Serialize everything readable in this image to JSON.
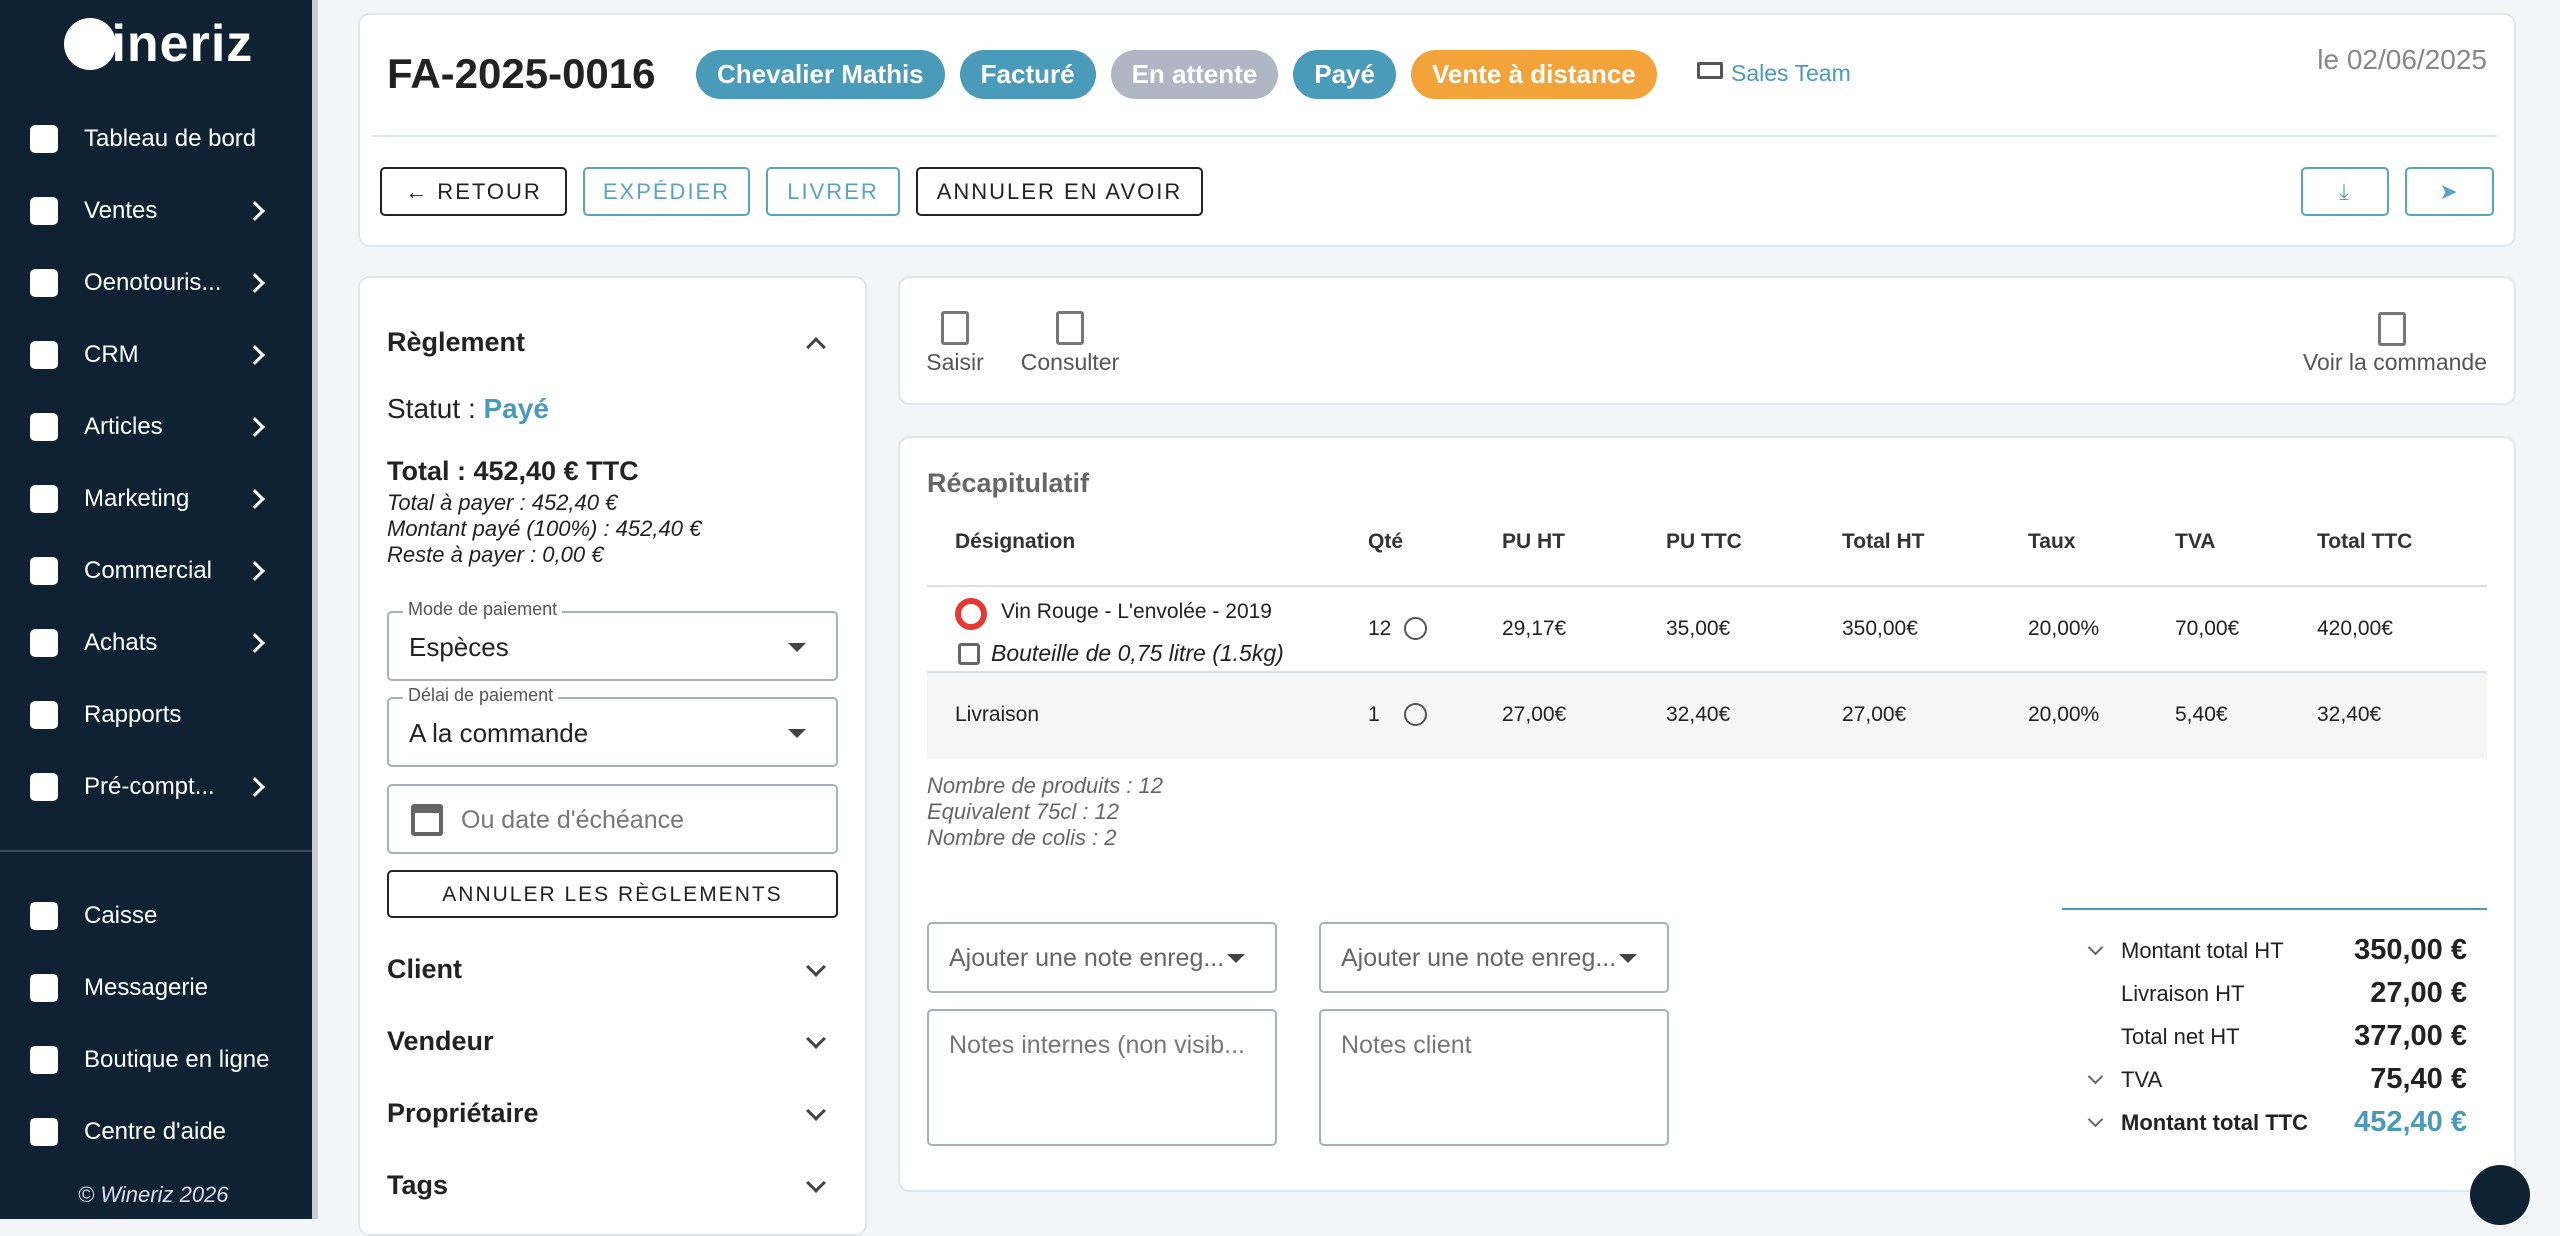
{
  "sidebar": {
    "logo": "wineriz",
    "menu": [
      "Tableau de bord",
      "Ventes",
      "Oenotouris...",
      "CRM",
      "Articles",
      "Marketing",
      "Commercial",
      "Achats",
      "Rapports",
      "Pré-compt..."
    ],
    "bottom_menu": [
      "Caisse",
      "Messagerie",
      "Boutique en ligne",
      "Centre d'aide"
    ],
    "footer": "© Wineriz 2026"
  },
  "header": {
    "title": "FA-2025-0016",
    "badges": [
      "Chevalier Mathis",
      "Facturé",
      "En attente",
      "Payé",
      "Vente à distance"
    ],
    "team": "Sales Team",
    "date": "le 02/06/2025",
    "actions": [
      "RETOUR",
      "EXPÉDIER",
      "LIVRER",
      "ANNULER EN AVOIR"
    ]
  },
  "payment": {
    "title": "Règlement",
    "status_label": "Statut :",
    "status": "Payé",
    "total": "Total : 452,40 € TTC",
    "details": [
      "Total à payer : 452,40 €",
      "Montant payé (100%) : 452,40 €",
      "Reste à payer : 0,00 €"
    ],
    "mode": {
      "label": "Mode de paiement",
      "value": "Espèces"
    },
    "delay": {
      "label": "Délai de paiement",
      "value": "A la commande"
    },
    "due_date_placeholder": "Ou date d'échéance",
    "cancel_button": "ANNULER LES RÈGLEMENTS",
    "sections": [
      "Client",
      "Vendeur",
      "Propriétaire",
      "Tags"
    ]
  },
  "toolbar": {
    "items": [
      "Saisir",
      "Consulter"
    ],
    "view_order": "Voir la commande"
  },
  "summary": {
    "title": "Récapitulatif",
    "columns": [
      "Désignation",
      "Qté",
      "PU HT",
      "PU TTC",
      "Total HT",
      "Taux",
      "TVA",
      "Total TTC"
    ],
    "rows": [
      {
        "designation": "Vin Rouge - L'envolée - 2019",
        "packaging": "Bouteille de 0,75 litre (1.5kg)",
        "cells": [
          "12",
          "29,17€",
          "35,00€",
          "350,00€",
          "20,00%",
          "70,00€",
          "420,00€"
        ]
      },
      {
        "designation": "Livraison",
        "cells": [
          "1",
          "27,00€",
          "32,40€",
          "27,00€",
          "20,00%",
          "5,40€",
          "32,40€"
        ]
      }
    ],
    "counts": [
      "Nombre de produits : 12",
      "Equivalent 75cl : 12",
      "Nombre de colis : 2"
    ],
    "note_selects": [
      "Ajouter une note enreg...",
      "Ajouter une note enreg..."
    ],
    "notes": [
      "Notes internes (non visib...",
      "Notes client"
    ],
    "totals": [
      {
        "label": "Montant total HT",
        "value": "350,00 €"
      },
      {
        "label": "Livraison HT",
        "value": "27,00 €"
      },
      {
        "label": "Total net HT",
        "value": "377,00 €"
      },
      {
        "label": "TVA",
        "value": "75,40 €"
      },
      {
        "label": "Montant total TTC",
        "value": "452,40 €"
      }
    ]
  }
}
